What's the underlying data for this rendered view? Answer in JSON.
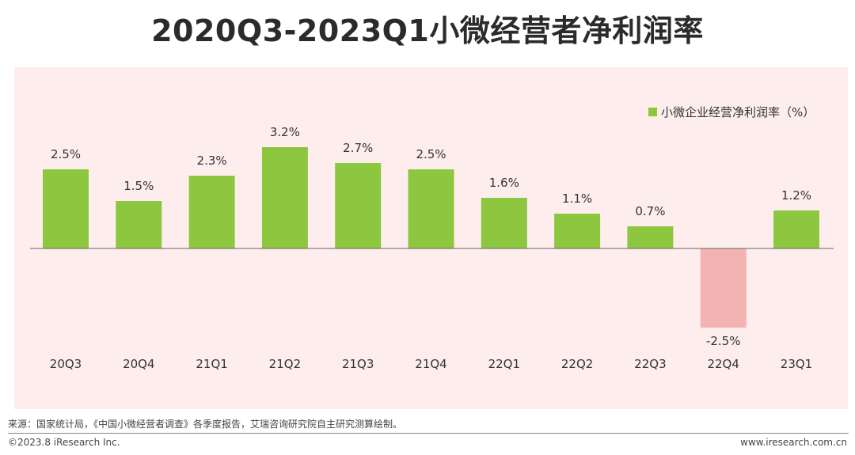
{
  "header": {
    "title": "2020Q3-2023Q1小微经营者净利润率"
  },
  "colors": {
    "positive": "#8dc63f",
    "negative": "#f4b3b3",
    "panel": "#fdeeed",
    "axis": "#666666"
  },
  "chart_data": {
    "type": "bar",
    "title": "2020Q3-2023Q1小微经营者净利润率",
    "xlabel": "",
    "ylabel": "",
    "categories": [
      "20Q3",
      "20Q4",
      "21Q1",
      "21Q2",
      "21Q3",
      "21Q4",
      "22Q1",
      "22Q2",
      "22Q3",
      "22Q4",
      "23Q1"
    ],
    "series": [
      {
        "name": "小微企业经营净利润率（%）",
        "values": [
          2.5,
          1.5,
          2.3,
          3.2,
          2.7,
          2.5,
          1.6,
          1.1,
          0.7,
          -2.5,
          1.2
        ],
        "labels": [
          "2.5%",
          "1.5%",
          "2.3%",
          "3.2%",
          "2.7%",
          "2.5%",
          "1.6%",
          "1.1%",
          "0.7%",
          "-2.5%",
          "1.2%"
        ]
      }
    ],
    "ylim": [
      -2.5,
      3.2
    ],
    "grid": false,
    "legend": "top-right"
  },
  "footer": {
    "source": "来源：国家统计局，《中国小微经营者调查》各季度报告，艾瑞咨询研究院自主研究测算绘制。",
    "copyright": "©2023.8 iResearch Inc.",
    "website": "www.iresearch.com.cn"
  }
}
